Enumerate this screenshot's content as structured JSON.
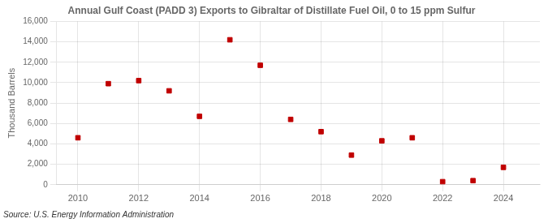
{
  "chart_data": {
    "type": "scatter",
    "title": "Annual Gulf Coast (PADD 3) Exports to Gibraltar of Distillate Fuel Oil, 0 to 15 ppm Sulfur",
    "ylabel": "Thousand Barrels",
    "source": "Source: U.S. Energy Information Administration",
    "x": [
      2010,
      2011,
      2012,
      2013,
      2014,
      2015,
      2016,
      2017,
      2018,
      2019,
      2020,
      2021,
      2022,
      2023,
      2024
    ],
    "values": [
      4600,
      9900,
      10200,
      9200,
      6700,
      14200,
      11700,
      6400,
      5200,
      2900,
      4300,
      4600,
      300,
      400,
      1700
    ],
    "color": "#c00000",
    "marker": "square",
    "xlim": [
      2009.3,
      2025.2
    ],
    "xticks": [
      2010,
      2012,
      2014,
      2016,
      2018,
      2020,
      2022,
      2024
    ],
    "ylim": [
      0,
      16000
    ],
    "yticks": [
      0,
      {
        "value": 2000,
        "label": "2,000"
      },
      {
        "value": 4000,
        "label": "4,000"
      },
      {
        "value": 6000,
        "label": "6,000"
      },
      {
        "value": 8000,
        "label": "8,000"
      },
      {
        "value": 10000,
        "label": "10,000"
      },
      {
        "value": 12000,
        "label": "12,000"
      },
      {
        "value": 14000,
        "label": "14,000"
      },
      {
        "value": 16000,
        "label": "16,000"
      }
    ],
    "grid": true
  }
}
